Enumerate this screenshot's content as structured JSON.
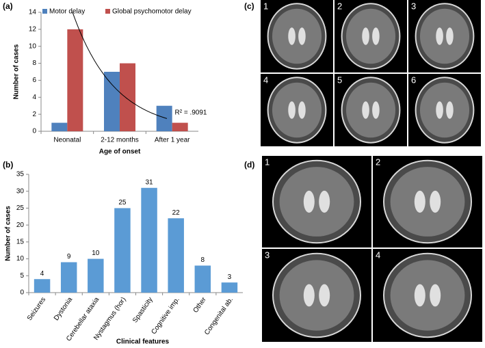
{
  "chart_data": [
    {
      "type": "bar",
      "panel_label": "(a)",
      "categories": [
        "Neonatal",
        "2-12 months",
        "After 1 year"
      ],
      "series": [
        {
          "name": "Motor delay",
          "color": "#4f81bd",
          "values": [
            1,
            7,
            3
          ]
        },
        {
          "name": "Global psychomotor delay",
          "color": "#c0504d",
          "values": [
            12,
            8,
            1
          ]
        }
      ],
      "ylim": [
        0,
        14
      ],
      "yticks": [
        0,
        2,
        4,
        6,
        8,
        10,
        12,
        14
      ],
      "x_label": "Age of onset",
      "y_label": "Number of cases",
      "legend": "top",
      "trendline": {
        "series": 1,
        "type": "exponential",
        "annotation": "R² = .9091"
      }
    },
    {
      "type": "bar",
      "panel_label": "(b)",
      "categories": [
        "Seizures",
        "Dystonia",
        "Cerebellar ataxia",
        "Nystagmus (hor)",
        "Spasticity",
        "Cognitive imp.",
        "Other",
        "Congenital ab."
      ],
      "values": [
        4,
        9,
        10,
        25,
        31,
        22,
        8,
        3
      ],
      "color": "#5b9bd5",
      "ylim": [
        0,
        35
      ],
      "yticks": [
        0,
        5,
        10,
        15,
        20,
        25,
        30,
        35
      ],
      "x_label": "Clinical features",
      "y_label": "Number of cases",
      "data_labels": true
    }
  ],
  "images": [
    {
      "label": "(c)",
      "panels": [
        "1",
        "2",
        "3",
        "4",
        "5",
        "6"
      ]
    },
    {
      "label": "(d)",
      "panels": [
        "1",
        "2",
        "3",
        "4"
      ]
    }
  ]
}
